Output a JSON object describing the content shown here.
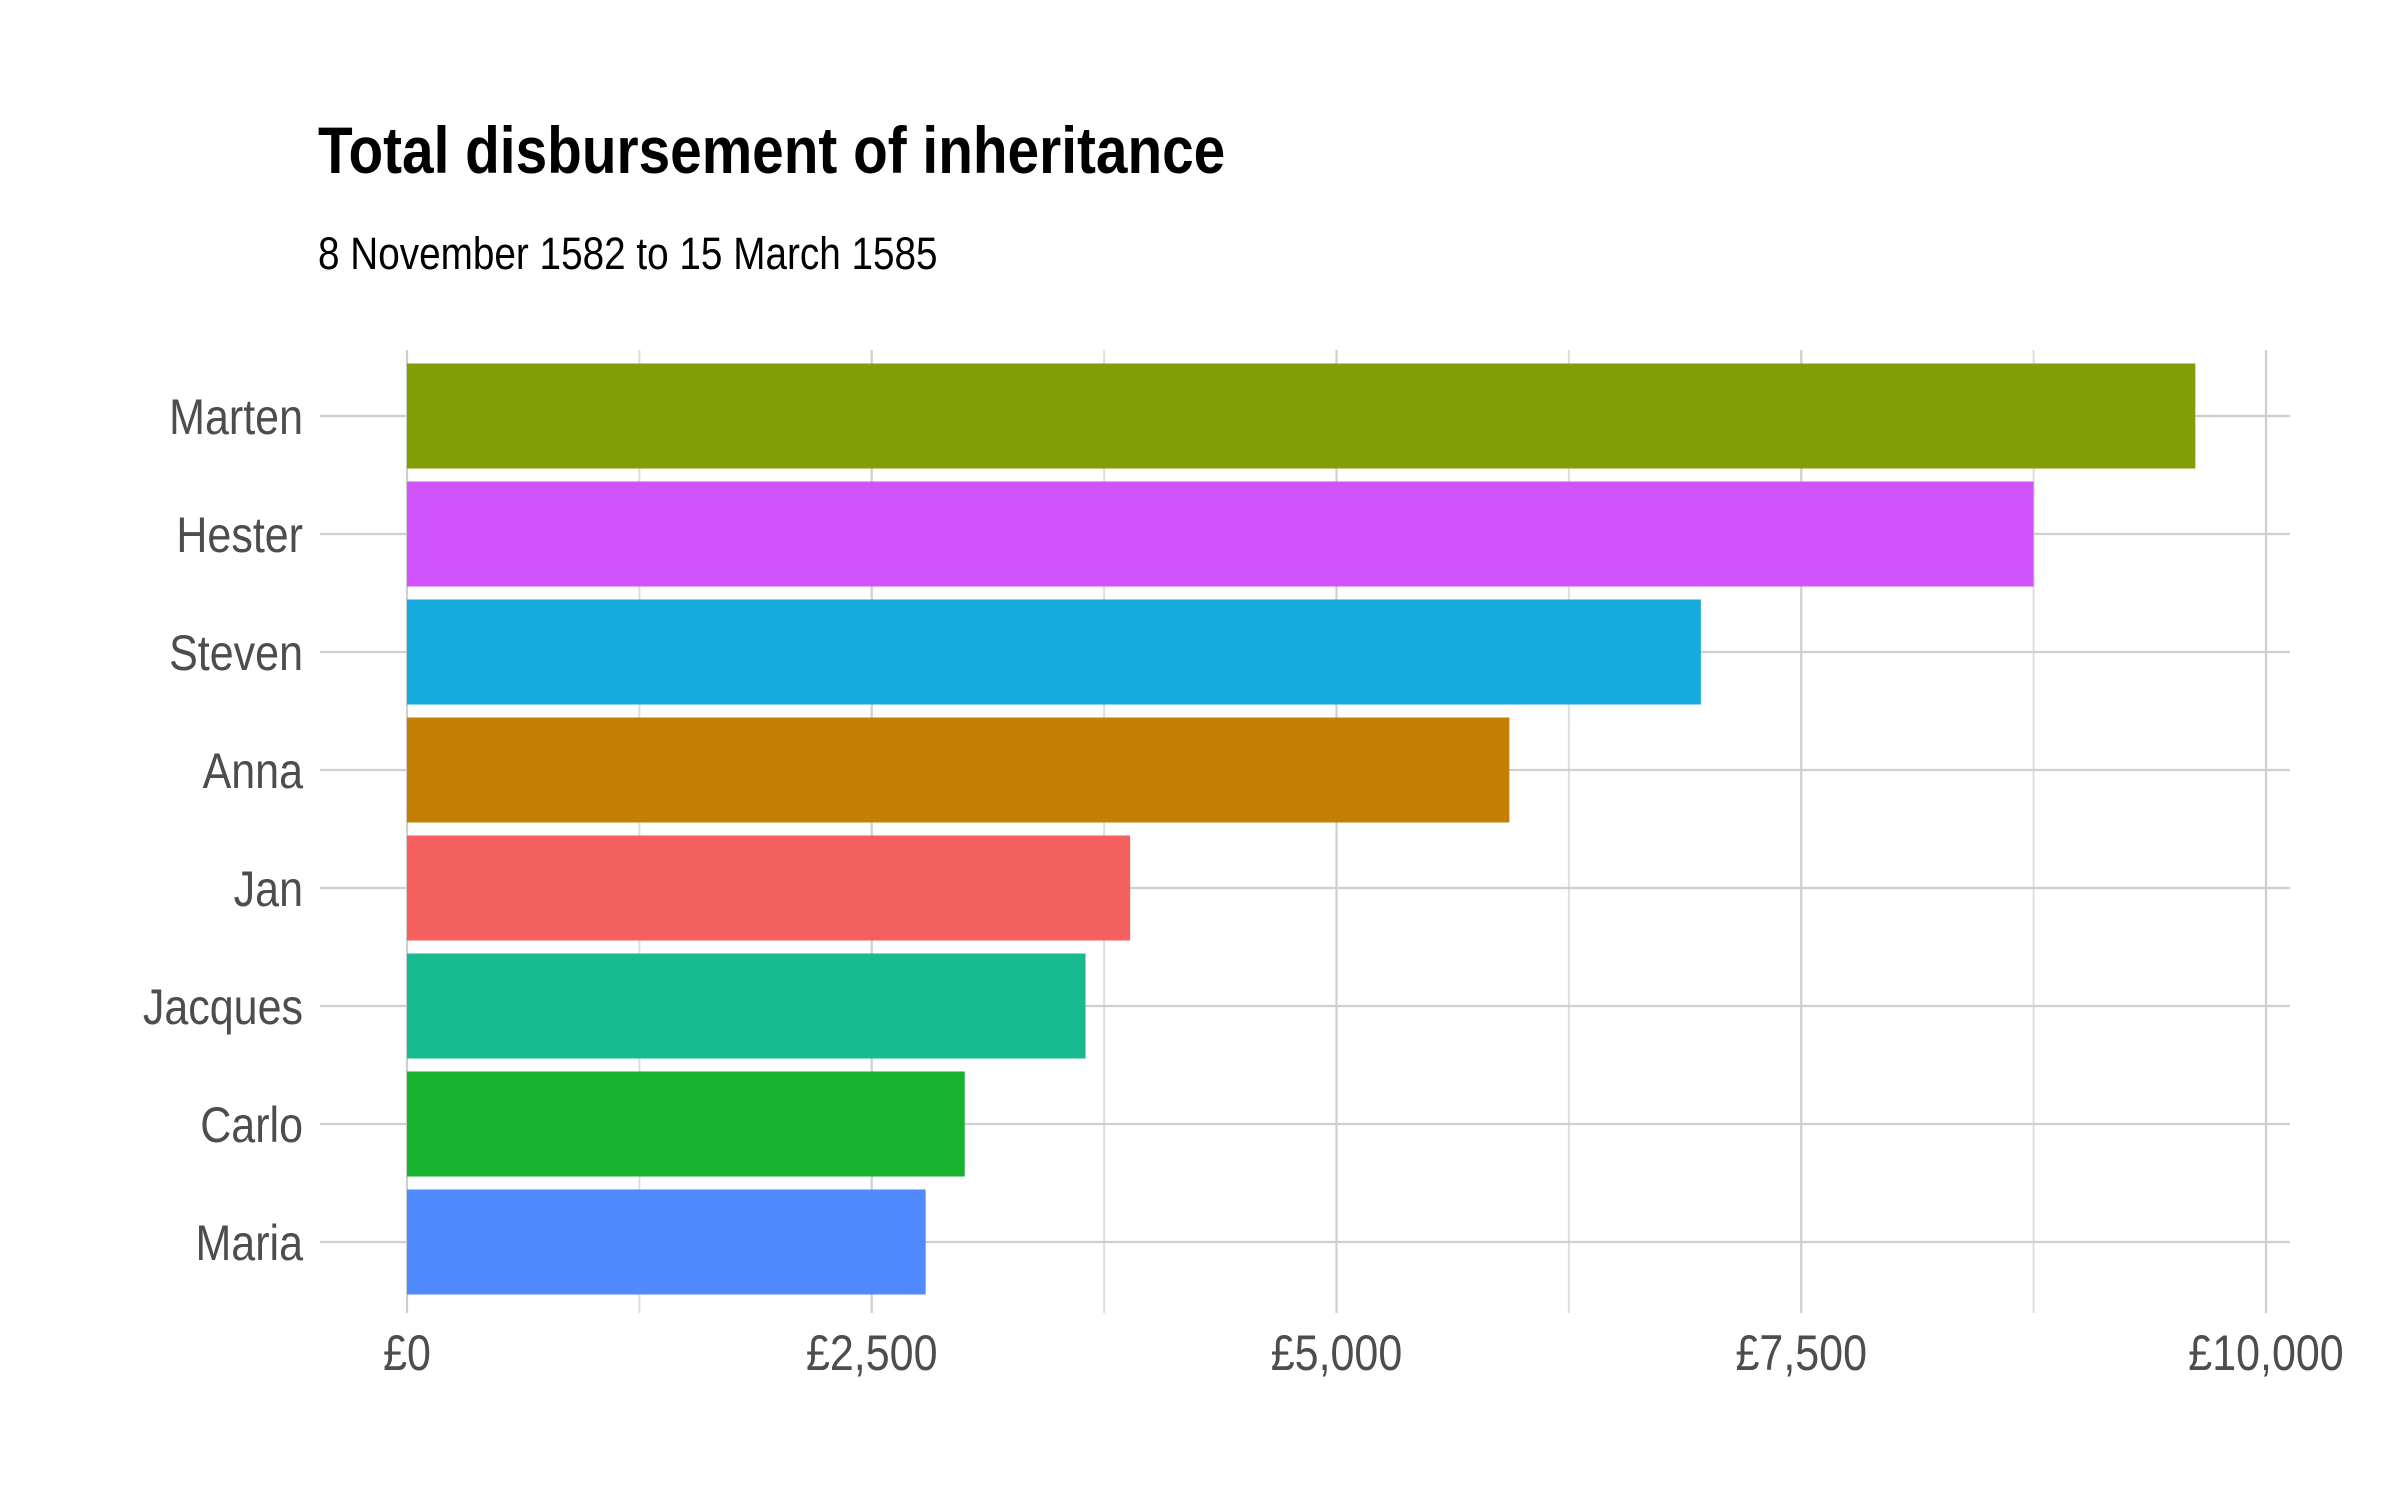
{
  "chart_data": {
    "type": "bar",
    "orientation": "horizontal",
    "title": "Total disbursement of inheritance",
    "subtitle": "8 November 1582 to 15 March 1585",
    "xlabel": "",
    "ylabel": "",
    "categories": [
      "Marten",
      "Hester",
      "Steven",
      "Anna",
      "Jan",
      "Jacques",
      "Carlo",
      "Maria"
    ],
    "values": [
      9620,
      8750,
      6960,
      5930,
      3890,
      3650,
      3000,
      2790
    ],
    "colors": [
      "#829E07",
      "#D153FB",
      "#15AADB",
      "#C57F05",
      "#F4605E",
      "#18BA8F",
      "#17B22E",
      "#508AFF"
    ],
    "xlim": [
      0,
      10000
    ],
    "x_ticks": [
      0,
      2500,
      5000,
      7500,
      10000
    ],
    "x_tick_labels": [
      "£0",
      "£2,500",
      "£5,000",
      "£7,500",
      "£10,000"
    ],
    "grid": true,
    "legend": "none"
  }
}
